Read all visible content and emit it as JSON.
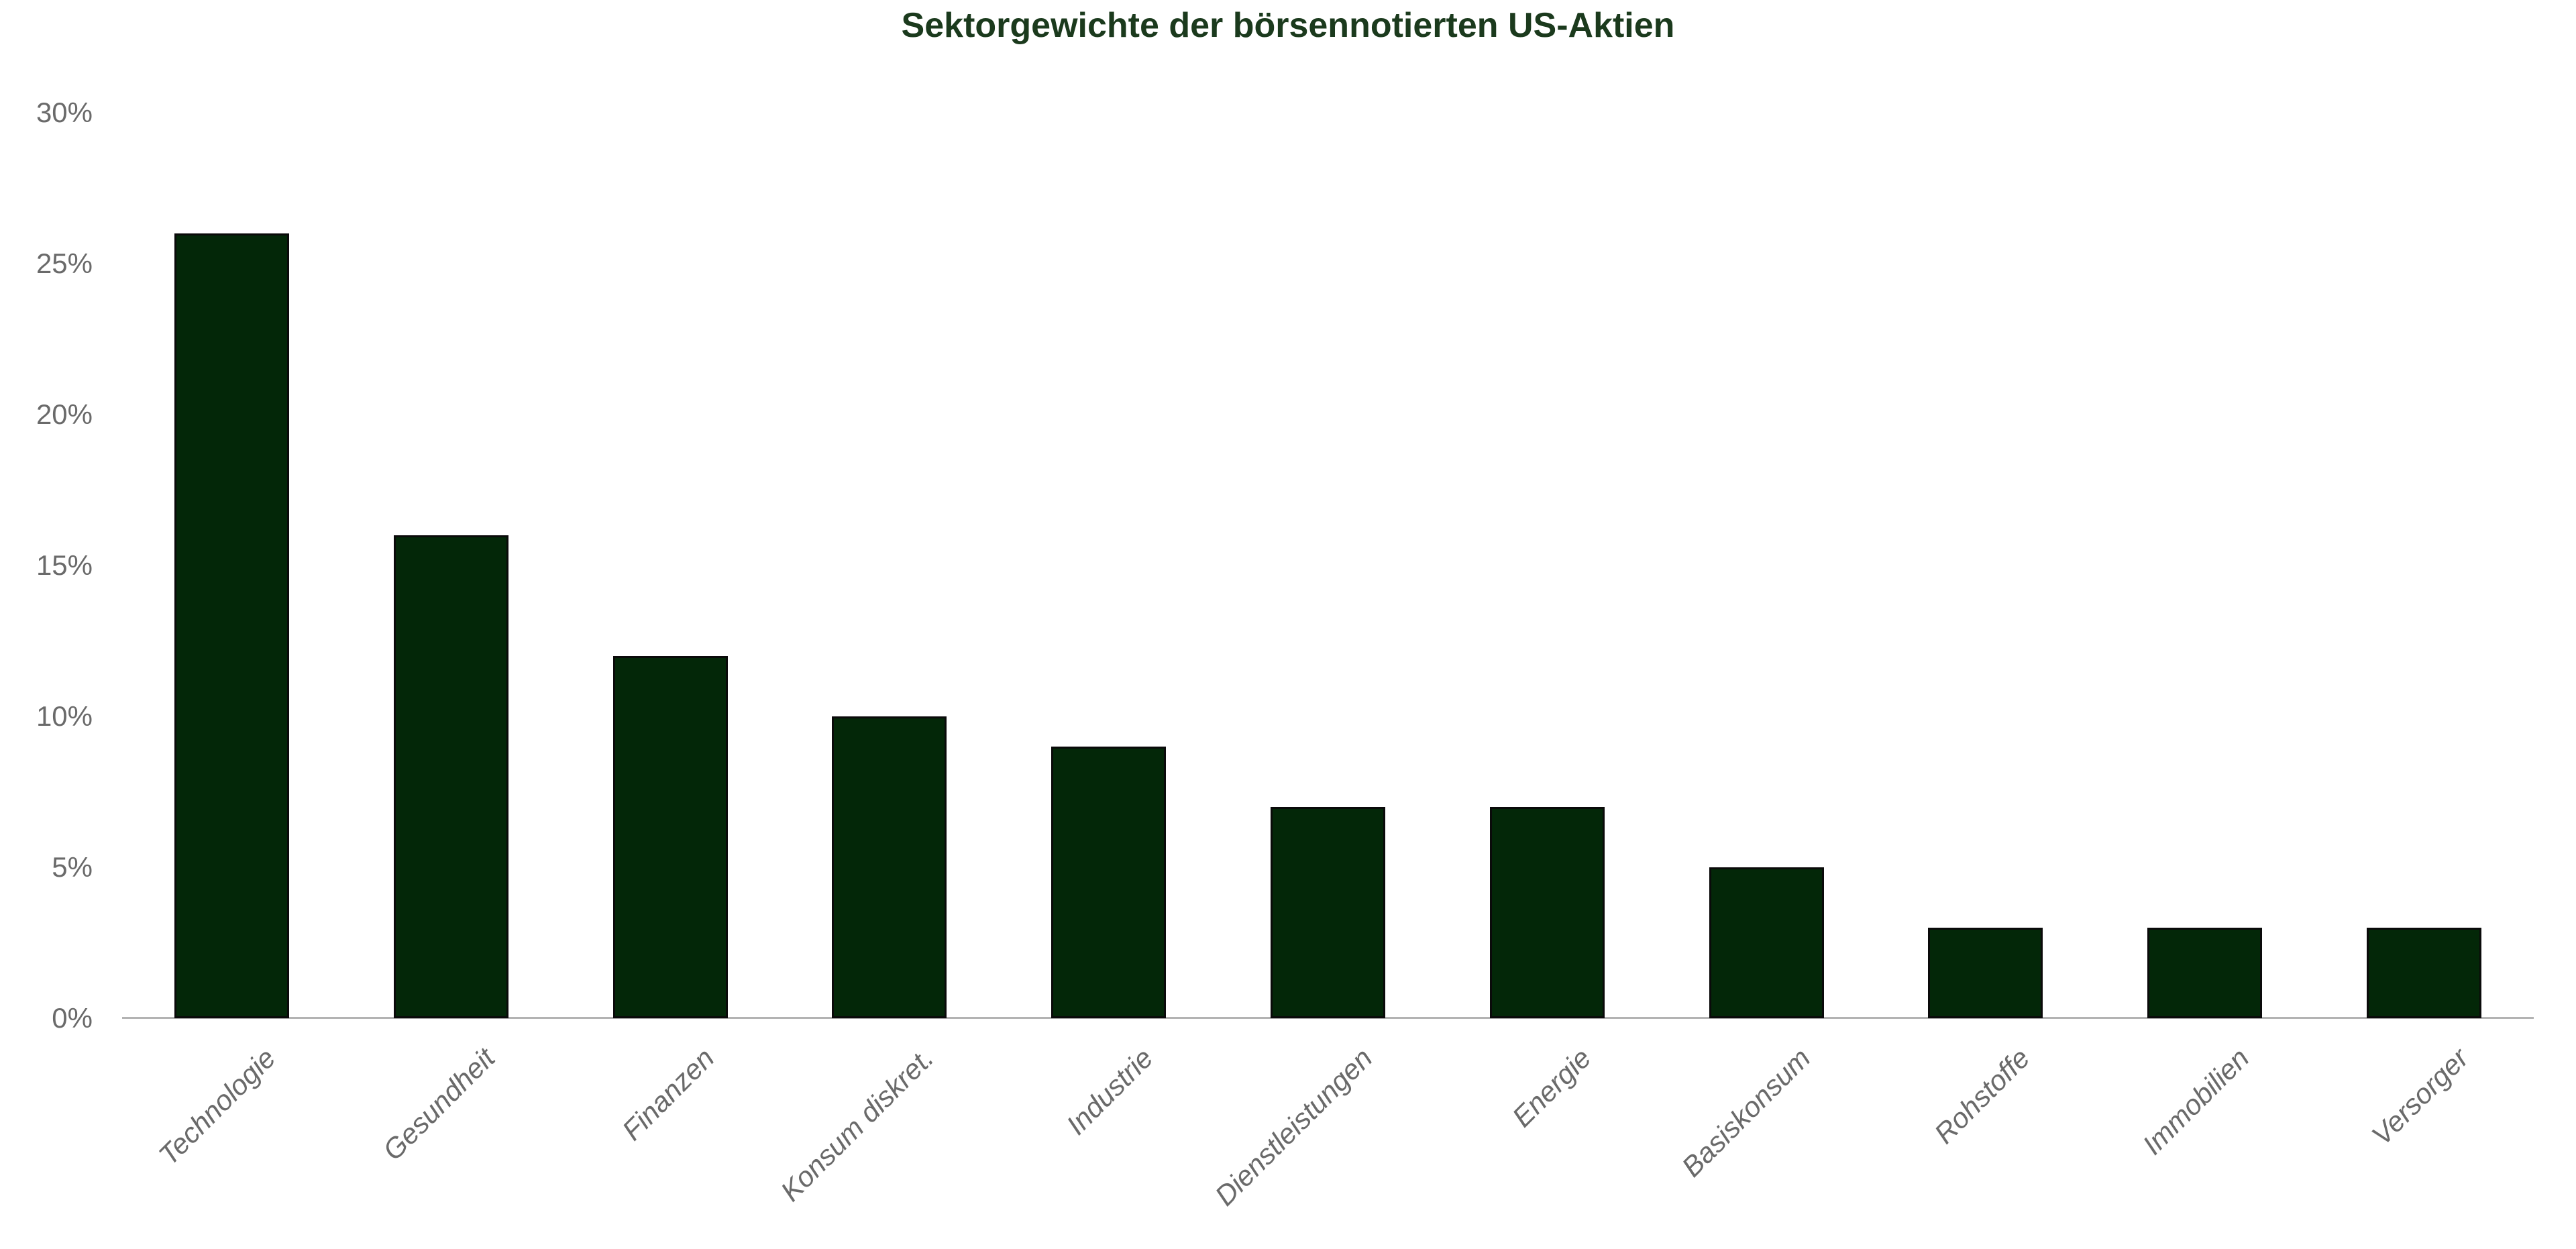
{
  "chart_data": {
    "type": "bar",
    "title": "Sektorgewichte der börsennotierten US-Aktien",
    "categories": [
      "Technologie",
      "Gesundheit",
      "Finanzen",
      "Konsum diskret.",
      "Industrie",
      "Dienstleistungen",
      "Energie",
      "Basiskonsum",
      "Rohstoffe",
      "Immobilien",
      "Versorger"
    ],
    "values": [
      26,
      16,
      12,
      10,
      9,
      7,
      7,
      5,
      3,
      3,
      3
    ],
    "unit": "%",
    "xlabel": "",
    "ylabel": "",
    "ylim": [
      0,
      30
    ],
    "ytick_step": 5,
    "ytick_labels": [
      "0%",
      "5%",
      "10%",
      "15%",
      "20%",
      "25%",
      "30%"
    ],
    "grid": false,
    "legend": "none",
    "colors": {
      "bar_fill": "#032708",
      "bar_border": "#0a0a0a",
      "title_text": "#1b3a1d",
      "tick_text": "#6a6a6a",
      "axis_line": "#b3b3b3",
      "background": "#ffffff"
    }
  }
}
